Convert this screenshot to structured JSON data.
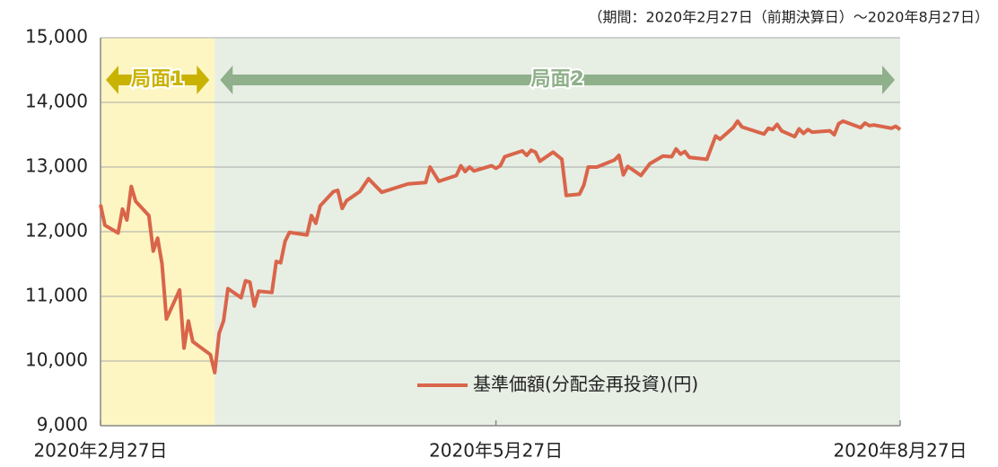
{
  "chart_data": {
    "type": "line",
    "subtitle": "（期間：2020年2月27日（前期決算日）～2020年8月27日）",
    "xlim": [
      "2020-02-27",
      "2020-08-27"
    ],
    "xticks": [
      {
        "value": "2020-02-27",
        "label": "2020年2月27日"
      },
      {
        "value": "2020-05-27",
        "label": "2020年5月27日"
      },
      {
        "value": "2020-08-27",
        "label": "2020年8月27日"
      }
    ],
    "ylim": [
      9000,
      15000
    ],
    "yticks": [
      {
        "value": 9000,
        "label": "9,000"
      },
      {
        "value": 10000,
        "label": "10,000"
      },
      {
        "value": 11000,
        "label": "11,000"
      },
      {
        "value": 12000,
        "label": "12,000"
      },
      {
        "value": 13000,
        "label": "13,000"
      },
      {
        "value": 14000,
        "label": "14,000"
      },
      {
        "value": 15000,
        "label": "15,000"
      }
    ],
    "grid": true,
    "legend": "lower center",
    "phases": [
      {
        "label": "局面1",
        "start": "2020-02-27",
        "end": "2020-03-24",
        "color": "#fdf6c3",
        "arrow_color": "#c9b300"
      },
      {
        "label": "局面2",
        "start": "2020-03-24",
        "end": "2020-08-27",
        "color": "#e7eee4",
        "arrow_color": "#8fb08a"
      }
    ],
    "x": [
      "2020-02-27",
      "2020-02-28",
      "2020-03-02",
      "2020-03-03",
      "2020-03-04",
      "2020-03-05",
      "2020-03-06",
      "2020-03-09",
      "2020-03-10",
      "2020-03-11",
      "2020-03-12",
      "2020-03-13",
      "2020-03-16",
      "2020-03-17",
      "2020-03-18",
      "2020-03-19",
      "2020-03-23",
      "2020-03-24",
      "2020-03-25",
      "2020-03-26",
      "2020-03-27",
      "2020-03-30",
      "2020-03-31",
      "2020-04-01",
      "2020-04-02",
      "2020-04-03",
      "2020-04-06",
      "2020-04-07",
      "2020-04-08",
      "2020-04-09",
      "2020-04-10",
      "2020-04-14",
      "2020-04-15",
      "2020-04-16",
      "2020-04-17",
      "2020-04-20",
      "2020-04-21",
      "2020-04-22",
      "2020-04-23",
      "2020-04-26",
      "2020-04-28",
      "2020-05-01",
      "2020-05-07",
      "2020-05-11",
      "2020-05-12",
      "2020-05-14",
      "2020-05-18",
      "2020-05-19",
      "2020-05-20",
      "2020-05-21",
      "2020-05-22",
      "2020-05-26",
      "2020-05-27",
      "2020-05-28",
      "2020-05-29",
      "2020-06-02",
      "2020-06-03",
      "2020-06-04",
      "2020-06-05",
      "2020-06-06",
      "2020-06-09",
      "2020-06-11",
      "2020-06-12",
      "2020-06-15",
      "2020-06-16",
      "2020-06-17",
      "2020-06-19",
      "2020-06-23",
      "2020-06-24",
      "2020-06-25",
      "2020-06-26",
      "2020-06-29",
      "2020-07-01",
      "2020-07-04",
      "2020-07-06",
      "2020-07-07",
      "2020-07-08",
      "2020-07-09",
      "2020-07-10",
      "2020-07-14",
      "2020-07-16",
      "2020-07-17",
      "2020-07-20",
      "2020-07-21",
      "2020-07-22",
      "2020-07-27",
      "2020-07-28",
      "2020-07-29",
      "2020-07-30",
      "2020-07-31",
      "2020-08-03",
      "2020-08-04",
      "2020-08-05",
      "2020-08-06",
      "2020-08-07",
      "2020-08-11",
      "2020-08-12",
      "2020-08-13",
      "2020-08-14",
      "2020-08-18",
      "2020-08-19",
      "2020-08-20",
      "2020-08-21",
      "2020-08-25",
      "2020-08-26",
      "2020-08-27"
    ],
    "series": [
      {
        "name": "基準価額(分配金再投資)(円)",
        "color": "#d9654a",
        "values": [
          12417,
          12100,
          11980,
          12350,
          12180,
          12700,
          12470,
          12250,
          11700,
          11900,
          11500,
          10650,
          11100,
          10200,
          10620,
          10300,
          10100,
          9820,
          10430,
          10620,
          11120,
          10980,
          11240,
          11220,
          10850,
          11080,
          11060,
          11540,
          11520,
          11850,
          11990,
          11950,
          12250,
          12130,
          12400,
          12620,
          12640,
          12360,
          12480,
          12620,
          12820,
          12610,
          12740,
          12760,
          13000,
          12780,
          12870,
          13020,
          12930,
          13000,
          12940,
          13020,
          12980,
          13020,
          13160,
          13250,
          13180,
          13260,
          13230,
          13090,
          13230,
          13120,
          12560,
          12580,
          12720,
          13000,
          13000,
          13110,
          13180,
          12880,
          13010,
          12870,
          13050,
          13170,
          13160,
          13280,
          13200,
          13240,
          13150,
          13120,
          13480,
          13430,
          13610,
          13710,
          13620,
          13510,
          13600,
          13580,
          13660,
          13560,
          13470,
          13590,
          13520,
          13580,
          13540,
          13560,
          13500,
          13670,
          13710,
          13610,
          13680,
          13640,
          13650,
          13600,
          13630,
          13580
        ]
      }
    ]
  }
}
